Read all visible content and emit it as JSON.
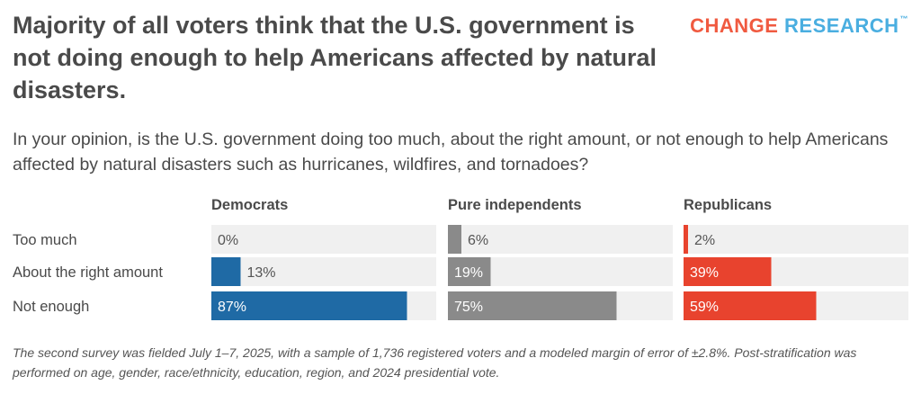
{
  "title": "Majority of all voters think that the U.S. government is not doing enough to help Americans affected by natural disasters.",
  "logo": {
    "word1": "CHANGE",
    "word2": "RESEARCH",
    "tm": "™",
    "color1": "#f05a40",
    "color2": "#4aaee0"
  },
  "subtitle": "In your opinion, is the U.S. government doing too much, about the right amount, or not enough to help Americans affected by natural disasters such as hurricanes, wildfires, and tornadoes?",
  "footnote": "The second survey was fielded July 1–7, 2025, with a sample of 1,736 registered voters and a modeled margin of error of ±2.8%. Post-stratification was performed on age, gender, race/ethnicity, education, region, and 2024 presidential vote.",
  "chart_data": {
    "type": "bar",
    "orientation": "horizontal",
    "categories": [
      "Too much",
      "About the right amount",
      "Not enough"
    ],
    "xlim": [
      0,
      100
    ],
    "series": [
      {
        "name": "Democrats",
        "values": [
          0,
          13,
          87
        ],
        "labels": [
          "0%",
          "13%",
          "87%"
        ],
        "color": "#1f6aa5"
      },
      {
        "name": "Pure independents",
        "values": [
          6,
          19,
          75
        ],
        "labels": [
          "6%",
          "19%",
          "75%"
        ],
        "color": "#8a8a8a"
      },
      {
        "name": "Republicans",
        "values": [
          2,
          39,
          59
        ],
        "labels": [
          "2%",
          "39%",
          "59%"
        ],
        "color": "#e8432e"
      }
    ],
    "track_color": "#f0f0f0"
  }
}
